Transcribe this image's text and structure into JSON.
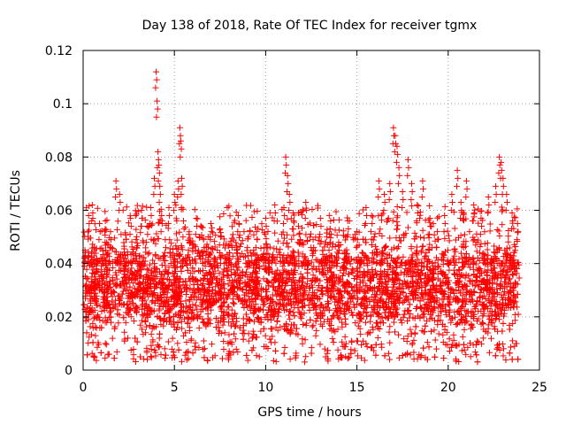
{
  "chart_data": {
    "type": "scatter",
    "title": "Day 138 of 2018, Rate Of TEC Index for receiver tgmx",
    "xlabel": "GPS time / hours",
    "ylabel": "ROTI / TECUs",
    "xlim": [
      0,
      25
    ],
    "ylim": [
      0,
      0.12
    ],
    "xticks": [
      0,
      5,
      10,
      15,
      20,
      25
    ],
    "xtick_labels": [
      "0",
      "5",
      "10",
      "15",
      "20",
      "25"
    ],
    "yticks": [
      0,
      0.02,
      0.04,
      0.06,
      0.08,
      0.1,
      0.12
    ],
    "ytick_labels": [
      "0",
      "0.02",
      "0.04",
      "0.06",
      "0.08",
      "0.1",
      "0.12"
    ],
    "grid": true,
    "marker": "plus",
    "color": "#ff0000",
    "series": [
      {
        "name": "ROTI",
        "x": [
          0.1,
          0.3,
          0.5,
          0.7,
          0.9,
          1.2,
          1.5,
          1.8,
          2.0,
          2.3,
          2.6,
          2.9,
          3.2,
          3.5,
          3.7,
          3.9,
          4.0,
          4.05,
          4.1,
          4.15,
          4.2,
          4.3,
          4.5,
          4.7,
          5.0,
          5.2,
          5.3,
          5.35,
          5.4,
          5.5,
          5.8,
          6.2,
          6.6,
          7.0,
          7.5,
          8.0,
          8.5,
          9.0,
          9.5,
          10.0,
          10.5,
          11.0,
          11.1,
          11.2,
          11.3,
          11.5,
          11.8,
          12.2,
          12.6,
          13.0,
          13.5,
          14.0,
          14.5,
          15.0,
          15.5,
          15.8,
          16.2,
          16.5,
          16.8,
          17.0,
          17.1,
          17.2,
          17.3,
          17.5,
          17.8,
          18.0,
          18.3,
          18.6,
          19.0,
          19.4,
          19.8,
          20.2,
          20.5,
          20.7,
          21.0,
          21.4,
          21.8,
          22.2,
          22.6,
          22.8,
          22.9,
          23.0,
          23.2,
          23.5,
          23.8
        ],
        "y": [
          0.045,
          0.058,
          0.062,
          0.041,
          0.055,
          0.048,
          0.052,
          0.071,
          0.066,
          0.043,
          0.057,
          0.049,
          0.06,
          0.054,
          0.061,
          0.072,
          0.112,
          0.101,
          0.082,
          0.077,
          0.069,
          0.058,
          0.049,
          0.061,
          0.066,
          0.071,
          0.091,
          0.086,
          0.072,
          0.056,
          0.051,
          0.057,
          0.049,
          0.055,
          0.053,
          0.047,
          0.058,
          0.046,
          0.052,
          0.057,
          0.062,
          0.061,
          0.08,
          0.073,
          0.066,
          0.059,
          0.054,
          0.063,
          0.049,
          0.057,
          0.051,
          0.048,
          0.056,
          0.052,
          0.061,
          0.058,
          0.071,
          0.066,
          0.07,
          0.091,
          0.088,
          0.084,
          0.076,
          0.067,
          0.079,
          0.07,
          0.062,
          0.071,
          0.057,
          0.052,
          0.058,
          0.066,
          0.075,
          0.063,
          0.071,
          0.062,
          0.057,
          0.065,
          0.069,
          0.08,
          0.078,
          0.072,
          0.066,
          0.059,
          0.055
        ],
        "band": {
          "x_start": 0.05,
          "x_end": 23.9,
          "y_low_typical": 0.01,
          "y_high_typical": 0.045,
          "y_min": 0.003,
          "y_max": 0.112
        }
      }
    ]
  }
}
